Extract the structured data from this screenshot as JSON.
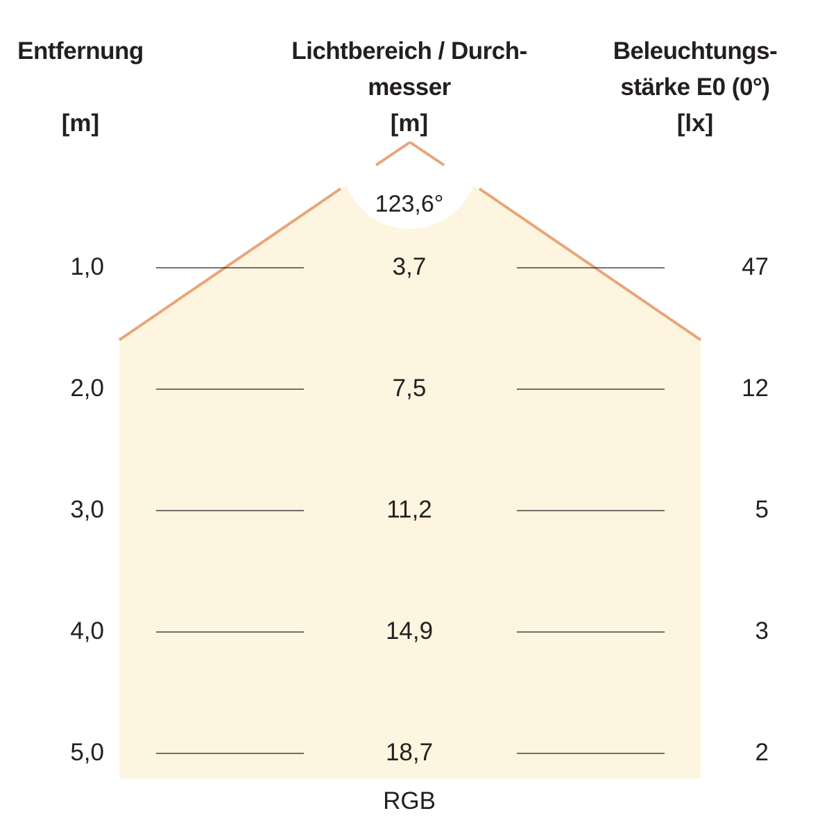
{
  "headers": {
    "distance": {
      "lines": [
        "Entfernung"
      ],
      "unit": "[m]"
    },
    "diameter": {
      "lines": [
        "Lichtbereich / Durch-",
        "messer"
      ],
      "unit": "[m]"
    },
    "illuminance": {
      "lines": [
        "Beleuchtungs-",
        "stärke E0 (0°)"
      ],
      "unit": "[lx]"
    }
  },
  "beam_angle": "123,6°",
  "rows": [
    {
      "distance": "1,0",
      "diameter": "3,7",
      "lux": "47"
    },
    {
      "distance": "2,0",
      "diameter": "7,5",
      "lux": "12"
    },
    {
      "distance": "3,0",
      "diameter": "11,2",
      "lux": "5"
    },
    {
      "distance": "4,0",
      "diameter": "14,9",
      "lux": "3"
    },
    {
      "distance": "5,0",
      "diameter": "18,7",
      "lux": "2"
    }
  ],
  "footer": "RGB",
  "colors": {
    "beam_fill": "#fdf5df",
    "beam_edge": "#e8a67a",
    "text": "#231f20",
    "leader_line": "#231f20"
  }
}
